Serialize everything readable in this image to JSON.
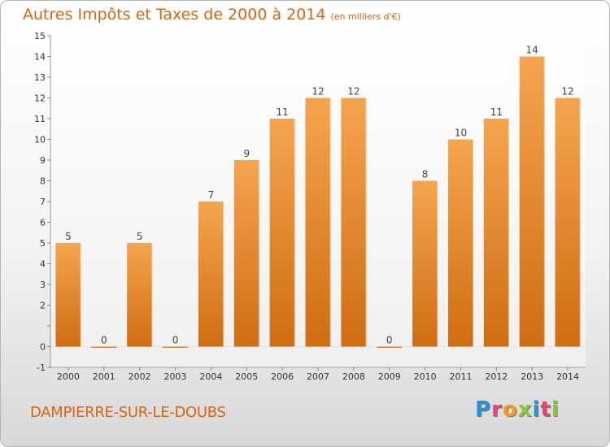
{
  "title": "Autres Impôts et Taxes de 2000 à 2014",
  "subtitle": "(en milliers d'€)",
  "commune": "DAMPIERRE-SUR-LE-DOUBS",
  "logo": {
    "letters": [
      "P",
      "r",
      "o",
      "x",
      "i",
      "t",
      "i"
    ],
    "colors": [
      "#2f8fd6",
      "#e0457b",
      "#f29a1d",
      "#8cc63f",
      "#2f8fd6",
      "#e0457b",
      "#8cc63f"
    ]
  },
  "colors": {
    "bar_top": "#f5a54f",
    "bar_bottom": "#cf6d12",
    "accent": "#d56510"
  },
  "chart_data": {
    "type": "bar",
    "categories": [
      "2000",
      "2001",
      "2002",
      "2003",
      "2004",
      "2005",
      "2006",
      "2007",
      "2008",
      "2009",
      "2010",
      "2011",
      "2012",
      "2013",
      "2014"
    ],
    "values": [
      5,
      0,
      5,
      0,
      7,
      9,
      11,
      12,
      12,
      0,
      8,
      10,
      11,
      14,
      12
    ],
    "ylim": [
      -1,
      15
    ],
    "yticks": [
      -1,
      0,
      1,
      2,
      3,
      4,
      5,
      6,
      7,
      8,
      9,
      10,
      11,
      12,
      13,
      14,
      15
    ],
    "ytick_labels": [
      "-1",
      "0",
      "",
      "2",
      "3",
      "4",
      "5",
      "6",
      "7",
      "8",
      "9",
      "10",
      "11",
      "12",
      "13",
      "14",
      "15"
    ],
    "grid": "none"
  }
}
